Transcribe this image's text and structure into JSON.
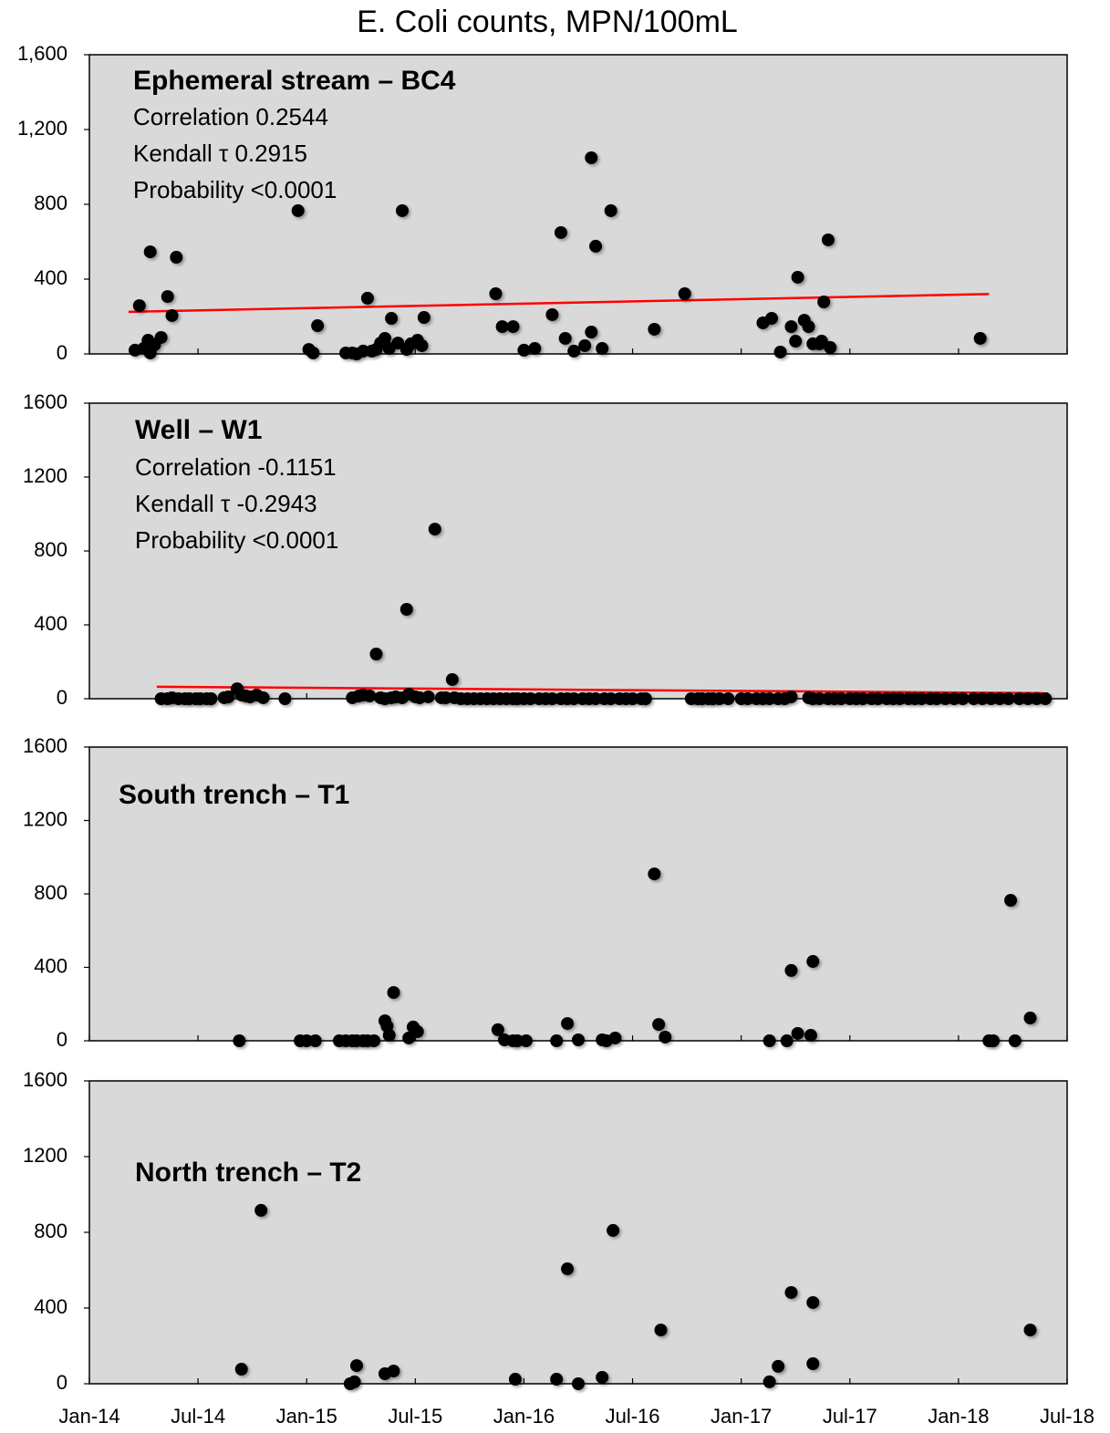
{
  "title": "E. Coli counts, MPN/100mL",
  "chart_data": [
    {
      "type": "scatter",
      "annotations": [
        "Ephemeral stream – BC4",
        "Correlation 0.2544",
        "Kendall τ 0.2915",
        "Probability <0.0001"
      ],
      "color": "#000000",
      "x": [
        2014.21,
        2014.23,
        2014.25,
        2014.27,
        2014.28,
        2014.27,
        2014.28,
        2014.3,
        2014.33,
        2014.36,
        2014.38,
        2014.4,
        2014.96,
        2015.01,
        2015.03,
        2015.05,
        2015.18,
        2015.21,
        2015.23,
        2015.26,
        2015.28,
        2015.3,
        2015.32,
        2015.34,
        2015.36,
        2015.38,
        2015.39,
        2015.42,
        2015.44,
        2015.46,
        2015.48,
        2015.51,
        2015.53,
        2015.54,
        2015.87,
        2015.9,
        2015.95,
        2016.0,
        2016.05,
        2016.13,
        2016.17,
        2016.19,
        2016.23,
        2016.28,
        2016.31,
        2016.31,
        2016.33,
        2016.36,
        2016.4,
        2016.6,
        2016.74,
        2017.1,
        2017.14,
        2017.18,
        2017.23,
        2017.25,
        2017.26,
        2017.29,
        2017.31,
        2017.33,
        2017.36,
        2017.37,
        2017.38,
        2017.4,
        2017.41,
        2018.1
      ],
      "values": [
        20,
        258,
        29,
        63,
        546,
        73,
        5,
        49,
        88,
        307,
        205,
        517,
        766,
        24,
        5,
        151,
        5,
        5,
        0,
        15,
        298,
        15,
        24,
        58,
        83,
        29,
        190,
        58,
        766,
        24,
        54,
        73,
        44,
        195,
        322,
        146,
        146,
        20,
        29,
        210,
        649,
        83,
        15,
        44,
        1049,
        117,
        576,
        29,
        766,
        132,
        322,
        166,
        190,
        10,
        146,
        68,
        410,
        180,
        146,
        54,
        54,
        68,
        278,
        610,
        34,
        83
      ],
      "trend": {
        "x": [
          2014.18,
          2018.14
        ],
        "values": [
          225,
          320
        ],
        "color": "#ff0000"
      },
      "xlim": [
        2014,
        2018.5
      ],
      "ylim": [
        0,
        1600
      ],
      "yticks": [
        0,
        400,
        800,
        {
          "value": 1200,
          "label": "1,200"
        },
        {
          "value": 1600,
          "label": "1,600"
        }
      ]
    },
    {
      "type": "scatter",
      "annotations": [
        "Well – W1",
        "Correlation -0.1151",
        "Kendall τ -0.2943",
        "Probability <0.0001"
      ],
      "color": "#000000",
      "x": [
        2014.33,
        2014.36,
        2014.38,
        2014.41,
        2014.44,
        2014.46,
        2014.49,
        2014.51,
        2014.54,
        2014.56,
        2014.62,
        2014.64,
        2014.68,
        2014.7,
        2014.72,
        2014.74,
        2014.77,
        2014.8,
        2014.9,
        2015.21,
        2015.24,
        2015.26,
        2015.29,
        2015.32,
        2015.34,
        2015.36,
        2015.39,
        2015.41,
        2015.44,
        2015.46,
        2015.47,
        2015.5,
        2015.52,
        2015.56,
        2015.59,
        2015.62,
        2015.64,
        2015.67,
        2015.68,
        2015.71,
        2015.74,
        2015.77,
        2015.8,
        2015.83,
        2015.86,
        2015.89,
        2015.92,
        2015.95,
        2015.97,
        2016.0,
        2016.03,
        2016.07,
        2016.1,
        2016.13,
        2016.17,
        2016.2,
        2016.23,
        2016.27,
        2016.3,
        2016.33,
        2016.37,
        2016.4,
        2016.44,
        2016.47,
        2016.5,
        2016.54,
        2016.56,
        2016.77,
        2016.8,
        2016.82,
        2016.85,
        2016.87,
        2016.9,
        2016.94,
        2017.0,
        2017.03,
        2017.07,
        2017.1,
        2017.13,
        2017.17,
        2017.2,
        2017.23,
        2017.31,
        2017.33,
        2017.36,
        2017.4,
        2017.43,
        2017.46,
        2017.5,
        2017.53,
        2017.56,
        2017.6,
        2017.63,
        2017.67,
        2017.7,
        2017.73,
        2017.77,
        2017.8,
        2017.83,
        2017.87,
        2017.9,
        2017.94,
        2017.98,
        2018.02,
        2018.07,
        2018.11,
        2018.15,
        2018.19,
        2018.23,
        2018.28,
        2018.32,
        2018.36,
        2018.4
      ],
      "values": [
        0,
        0,
        5,
        0,
        0,
        0,
        0,
        0,
        0,
        0,
        5,
        10,
        54,
        20,
        15,
        10,
        20,
        5,
        0,
        5,
        15,
        20,
        15,
        242,
        5,
        0,
        5,
        10,
        5,
        484,
        25,
        10,
        5,
        10,
        918,
        5,
        5,
        104,
        5,
        0,
        0,
        0,
        0,
        0,
        0,
        0,
        0,
        0,
        0,
        0,
        0,
        0,
        0,
        0,
        0,
        0,
        0,
        0,
        0,
        0,
        0,
        0,
        0,
        0,
        0,
        0,
        0,
        0,
        0,
        0,
        0,
        0,
        0,
        0,
        0,
        0,
        0,
        0,
        0,
        0,
        0,
        10,
        5,
        0,
        0,
        0,
        0,
        0,
        0,
        0,
        0,
        0,
        0,
        0,
        0,
        0,
        0,
        0,
        0,
        0,
        0,
        0,
        0,
        0,
        0,
        0,
        0,
        0,
        0,
        0,
        0,
        0,
        0
      ],
      "trend": {
        "x": [
          2014.31,
          2018.41
        ],
        "values": [
          65,
          30
        ],
        "color": "#ff0000"
      },
      "xlim": [
        2014,
        2018.5
      ],
      "ylim": [
        0,
        1600
      ],
      "yticks": [
        0,
        400,
        800,
        1200,
        1600
      ]
    },
    {
      "type": "scatter",
      "annotations": [
        "South trench – T1"
      ],
      "color": "#000000",
      "x": [
        2014.69,
        2014.97,
        2015.0,
        2015.04,
        2015.15,
        2015.18,
        2015.21,
        2015.23,
        2015.26,
        2015.28,
        2015.31,
        2015.36,
        2015.37,
        2015.38,
        2015.4,
        2015.47,
        2015.49,
        2015.51,
        2015.88,
        2015.91,
        2015.95,
        2015.97,
        2016.01,
        2016.15,
        2016.2,
        2016.25,
        2016.36,
        2016.38,
        2016.42,
        2016.6,
        2016.62,
        2016.65,
        2017.13,
        2017.21,
        2017.23,
        2017.26,
        2017.32,
        2017.33,
        2018.14,
        2018.16,
        2018.26,
        2018.24,
        2018.33
      ],
      "values": [
        0,
        0,
        0,
        0,
        0,
        0,
        0,
        0,
        0,
        0,
        0,
        109,
        80,
        30,
        263,
        15,
        75,
        50,
        60,
        5,
        0,
        0,
        0,
        0,
        94,
        5,
        5,
        0,
        15,
        909,
        89,
        20,
        0,
        0,
        383,
        40,
        30,
        432,
        0,
        0,
        0,
        765,
        124
      ],
      "xlim": [
        2014,
        2018.5
      ],
      "ylim": [
        0,
        1600
      ],
      "yticks": [
        0,
        400,
        800,
        1200,
        1600
      ]
    },
    {
      "type": "scatter",
      "annotations": [
        "North trench – T2"
      ],
      "color": "#000000",
      "x": [
        2014.7,
        2014.79,
        2015.2,
        2015.22,
        2015.23,
        2015.36,
        2015.4,
        2015.96,
        2016.15,
        2016.2,
        2016.25,
        2016.36,
        2016.41,
        2016.63,
        2017.13,
        2017.17,
        2017.23,
        2017.33,
        2017.33,
        2018.33
      ],
      "values": [
        77,
        916,
        0,
        10,
        96,
        53,
        67,
        24,
        24,
        607,
        0,
        34,
        810,
        284,
        10,
        92,
        482,
        106,
        429,
        284
      ],
      "xlim": [
        2014,
        2018.5
      ],
      "ylim": [
        0,
        1600
      ],
      "yticks": [
        0,
        400,
        800,
        1200,
        1600
      ],
      "xticks": [
        {
          "value": 2014,
          "label": "Jan-14"
        },
        {
          "value": 2014.5,
          "label": "Jul-14"
        },
        {
          "value": 2015,
          "label": "Jan-15"
        },
        {
          "value": 2015.5,
          "label": "Jul-15"
        },
        {
          "value": 2016,
          "label": "Jan-16"
        },
        {
          "value": 2016.5,
          "label": "Jul-16"
        },
        {
          "value": 2017,
          "label": "Jan-17"
        },
        {
          "value": 2017.5,
          "label": "Jul-17"
        },
        {
          "value": 2018,
          "label": "Jan-18"
        },
        {
          "value": 2018.5,
          "label": "Jul-18"
        }
      ]
    }
  ]
}
